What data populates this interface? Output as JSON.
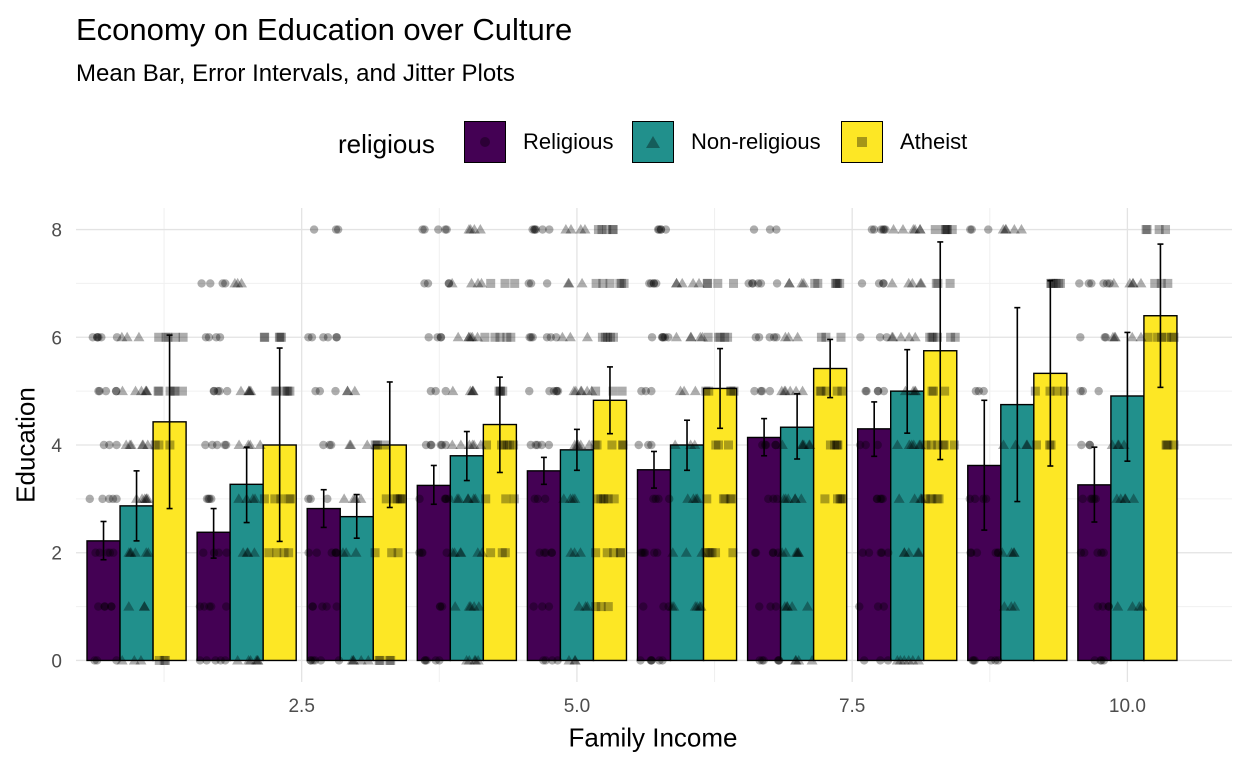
{
  "chart_data": {
    "type": "bar",
    "title": "Economy on Education over Culture",
    "subtitle": "Mean Bar, Error Intervals, and Jitter Plots",
    "xlabel": "Family Income",
    "ylabel": "Education",
    "xlim": [
      0.45,
      10.95
    ],
    "ylim": [
      -0.4,
      8.4
    ],
    "x_ticks": [
      2.5,
      5.0,
      7.5,
      10.0
    ],
    "x_tick_labels": [
      "2.5",
      "5.0",
      "7.5",
      "10.0"
    ],
    "y_ticks": [
      0,
      2,
      4,
      6,
      8
    ],
    "y_tick_labels": [
      "0",
      "2",
      "4",
      "6",
      "8"
    ],
    "grid": true,
    "legend": {
      "title": "religious",
      "position": "top",
      "entries": [
        {
          "label": "Religious",
          "color": "#440154",
          "shape": "circle"
        },
        {
          "label": "Non-religious",
          "color": "#21908C",
          "shape": "triangle"
        },
        {
          "label": "Atheist",
          "color": "#FDE725",
          "shape": "square"
        }
      ]
    },
    "categories": [
      1,
      2,
      3,
      4,
      5,
      6,
      7,
      8,
      9,
      10
    ],
    "series": [
      {
        "name": "Religious",
        "color": "#440154",
        "values": [
          2.22,
          2.38,
          2.82,
          3.25,
          3.52,
          3.54,
          4.14,
          4.3,
          3.62,
          3.26
        ],
        "ci_low": [
          1.87,
          1.9,
          2.47,
          2.9,
          3.27,
          3.2,
          3.8,
          3.79,
          2.42,
          2.57
        ],
        "ci_high": [
          2.58,
          2.82,
          3.17,
          3.62,
          3.77,
          3.88,
          4.49,
          4.8,
          4.83,
          3.96
        ],
        "jitter_levels": [
          [
            0,
            1,
            2,
            3,
            4,
            5,
            6
          ],
          [
            0,
            1,
            2,
            3,
            4,
            5,
            6,
            7
          ],
          [
            0,
            1,
            2,
            3,
            4,
            5,
            6,
            8
          ],
          [
            0,
            1,
            2,
            3,
            4,
            5,
            6,
            7,
            8
          ],
          [
            0,
            1,
            2,
            3,
            4,
            5,
            6,
            7,
            8
          ],
          [
            0,
            1,
            2,
            3,
            4,
            5,
            6,
            7,
            8
          ],
          [
            0,
            1,
            2,
            3,
            4,
            5,
            6,
            7,
            8
          ],
          [
            0,
            1,
            2,
            3,
            4,
            5,
            6,
            7,
            8
          ],
          [
            0,
            2,
            3,
            5,
            8
          ],
          [
            0,
            1,
            2,
            3,
            4,
            5,
            6,
            7
          ]
        ]
      },
      {
        "name": "Non-religious",
        "color": "#21908C",
        "values": [
          2.87,
          3.27,
          2.67,
          3.8,
          3.91,
          4.0,
          4.33,
          5.0,
          4.75,
          4.91
        ],
        "ci_low": [
          2.22,
          2.56,
          2.27,
          3.34,
          3.53,
          3.53,
          3.74,
          4.22,
          2.95,
          3.7
        ],
        "ci_high": [
          3.52,
          3.96,
          3.08,
          4.25,
          4.29,
          4.46,
          4.95,
          5.77,
          6.55,
          6.09
        ],
        "jitter_levels": [
          [
            0,
            1,
            2,
            3,
            4,
            5,
            6
          ],
          [
            0,
            2,
            3,
            4,
            5,
            7
          ],
          [
            0,
            2,
            3,
            4,
            5
          ],
          [
            0,
            1,
            2,
            3,
            4,
            5,
            6,
            7,
            8
          ],
          [
            0,
            1,
            2,
            3,
            4,
            5,
            6,
            7,
            8
          ],
          [
            1,
            2,
            3,
            4,
            5,
            6,
            7
          ],
          [
            0,
            1,
            2,
            3,
            4,
            5,
            6,
            7
          ],
          [
            0,
            2,
            3,
            4,
            5,
            6,
            7,
            8
          ],
          [
            1,
            2,
            4,
            8
          ],
          [
            1,
            3,
            4,
            6,
            7
          ]
        ]
      },
      {
        "name": "Atheist",
        "color": "#FDE725",
        "values": [
          4.43,
          4.0,
          4.0,
          4.38,
          4.83,
          5.05,
          5.42,
          5.75,
          5.33,
          6.4
        ],
        "ci_low": [
          2.82,
          2.21,
          2.84,
          3.49,
          4.21,
          4.31,
          4.88,
          3.73,
          3.61,
          5.07
        ],
        "ci_high": [
          6.04,
          5.8,
          5.17,
          5.26,
          5.45,
          5.79,
          5.96,
          7.77,
          7.05,
          7.73
        ],
        "jitter_levels": [
          [
            0,
            4,
            5,
            6
          ],
          [
            2,
            3,
            5,
            6
          ],
          [
            0,
            2,
            3,
            4
          ],
          [
            2,
            3,
            4,
            5,
            6,
            7
          ],
          [
            1,
            2,
            3,
            4,
            5,
            6,
            7,
            8
          ],
          [
            2,
            3,
            4,
            5,
            6,
            7
          ],
          [
            3,
            4,
            5,
            6,
            7
          ],
          [
            3,
            4,
            5,
            6,
            7,
            8
          ],
          [
            4,
            5,
            7
          ],
          [
            4,
            6,
            7,
            8
          ]
        ]
      }
    ]
  }
}
